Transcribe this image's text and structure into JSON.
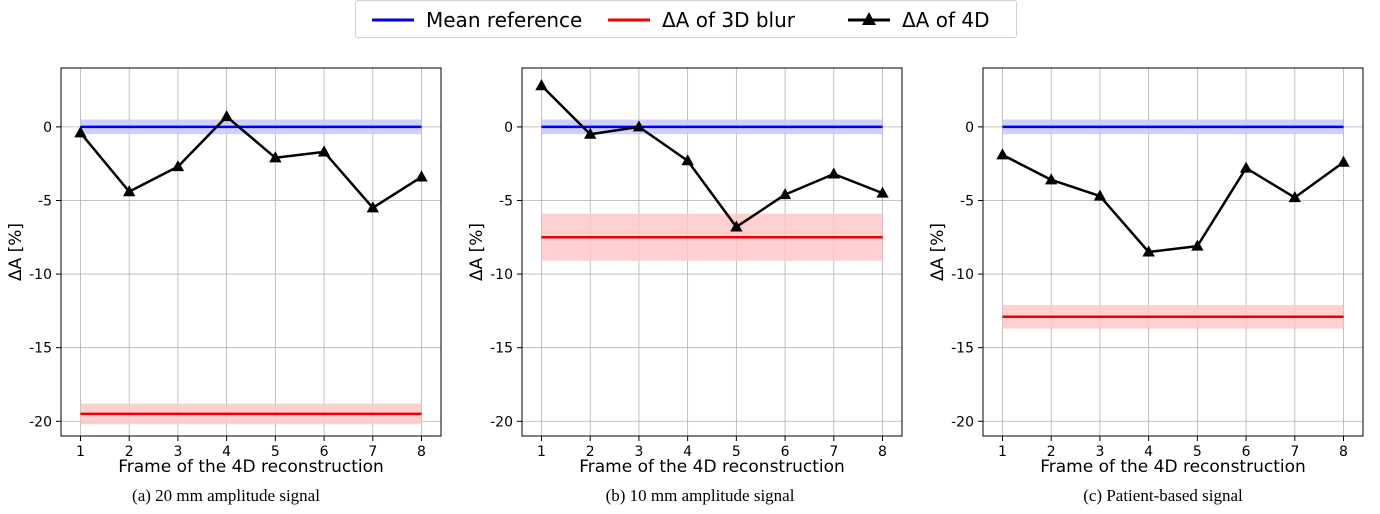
{
  "legend": {
    "entries": [
      {
        "label": "Mean reference",
        "color": "#0000ee",
        "marker": "none"
      },
      {
        "label": "ΔA of 3D blur",
        "color": "#ee0000",
        "marker": "none"
      },
      {
        "label": "ΔA of 4D",
        "color": "#000000",
        "marker": "triangle"
      }
    ],
    "placement": "top-center"
  },
  "colors": {
    "reference": "#0000ee",
    "reference_band": "#c8c8ff",
    "blur": "#ee0000",
    "blur_band": "#ffc8c8",
    "fourd": "#000000",
    "grid": "#b0b0b0"
  },
  "chart_data": [
    {
      "type": "line",
      "caption": "(a) 20 mm amplitude signal",
      "xlabel": "Frame of the 4D reconstruction",
      "ylabel": "ΔA [%]",
      "xlim": [
        0.6,
        8.4
      ],
      "ylim": [
        -21,
        4
      ],
      "xticks": [
        1,
        2,
        3,
        4,
        5,
        6,
        7,
        8
      ],
      "yticks": [
        0,
        -5,
        -10,
        -15,
        -20
      ],
      "grid": true,
      "series": [
        {
          "name": "Mean reference",
          "kind": "band_line",
          "value": 0,
          "band": [
            -0.5,
            0.5
          ]
        },
        {
          "name": "ΔA of 3D blur",
          "kind": "band_line",
          "value": -19.5,
          "band": [
            -20.2,
            -18.8
          ]
        },
        {
          "name": "ΔA of 4D",
          "kind": "line_marker",
          "x": [
            1,
            2,
            3,
            4,
            5,
            6,
            7,
            8
          ],
          "y": [
            -0.4,
            -4.4,
            -2.7,
            0.7,
            -2.1,
            -1.7,
            -5.5,
            -3.4
          ]
        }
      ]
    },
    {
      "type": "line",
      "caption": "(b) 10 mm amplitude signal",
      "xlabel": "Frame of the 4D reconstruction",
      "ylabel": "ΔA [%]",
      "xlim": [
        0.6,
        8.4
      ],
      "ylim": [
        -21,
        4
      ],
      "xticks": [
        1,
        2,
        3,
        4,
        5,
        6,
        7,
        8
      ],
      "yticks": [
        0,
        -5,
        -10,
        -15,
        -20
      ],
      "grid": true,
      "series": [
        {
          "name": "Mean reference",
          "kind": "band_line",
          "value": 0,
          "band": [
            -0.5,
            0.5
          ]
        },
        {
          "name": "ΔA of 3D blur",
          "kind": "band_line",
          "value": -7.5,
          "band": [
            -9.1,
            -5.9
          ]
        },
        {
          "name": "ΔA of 4D",
          "kind": "line_marker",
          "x": [
            1,
            2,
            3,
            4,
            5,
            6,
            7,
            8
          ],
          "y": [
            2.8,
            -0.5,
            0.0,
            -2.3,
            -6.8,
            -4.6,
            -3.2,
            -4.5
          ]
        }
      ]
    },
    {
      "type": "line",
      "caption": "(c) Patient-based signal",
      "xlabel": "Frame of the 4D reconstruction",
      "ylabel": "ΔA [%]",
      "xlim": [
        0.6,
        8.4
      ],
      "ylim": [
        -21,
        4
      ],
      "xticks": [
        1,
        2,
        3,
        4,
        5,
        6,
        7,
        8
      ],
      "yticks": [
        0,
        -5,
        -10,
        -15,
        -20
      ],
      "grid": true,
      "series": [
        {
          "name": "Mean reference",
          "kind": "band_line",
          "value": 0,
          "band": [
            -0.5,
            0.5
          ]
        },
        {
          "name": "ΔA of 3D blur",
          "kind": "band_line",
          "value": -12.9,
          "band": [
            -13.7,
            -12.1
          ]
        },
        {
          "name": "ΔA of 4D",
          "kind": "line_marker",
          "x": [
            1,
            2,
            3,
            4,
            5,
            6,
            7,
            8
          ],
          "y": [
            -1.9,
            -3.6,
            -4.7,
            -8.5,
            -8.1,
            -2.8,
            -4.8,
            -2.4
          ]
        }
      ]
    }
  ]
}
